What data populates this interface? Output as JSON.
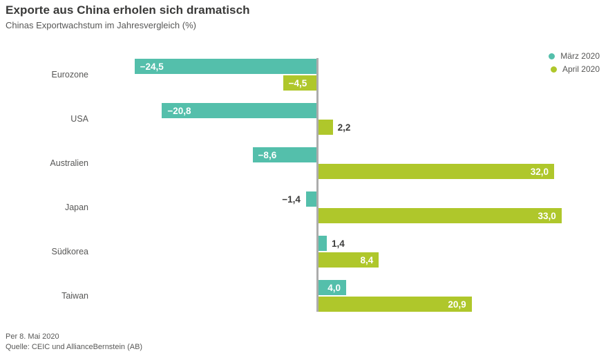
{
  "header": {
    "title": "Exporte aus China erholen sich dramatisch",
    "subtitle": "Chinas Exportwachstum im Jahresvergleich (%)"
  },
  "legend": {
    "position": "top-right",
    "items": [
      {
        "label": "März 2020",
        "color": "#54BFAB"
      },
      {
        "label": "April 2020",
        "color": "#AFC72B"
      }
    ]
  },
  "chart_data": {
    "type": "bar",
    "orientation": "horizontal",
    "title": "Exporte aus China erholen sich dramatisch",
    "subtitle": "Chinas Exportwachstum im Jahresvergleich (%)",
    "value_unit": "%",
    "categories": [
      "Eurozone",
      "USA",
      "Australien",
      "Japan",
      "Südkorea",
      "Taiwan"
    ],
    "series": [
      {
        "name": "März 2020",
        "color": "#54BFAB",
        "values": [
          -24.5,
          -20.8,
          -8.6,
          -1.4,
          1.4,
          4.0
        ],
        "labels": [
          "−24,5",
          "−20,8",
          "−8,6",
          "−1,4",
          "1,4",
          "4,0"
        ]
      },
      {
        "name": "April 2020",
        "color": "#AFC72B",
        "values": [
          -4.5,
          2.2,
          32.0,
          33.0,
          8.4,
          20.9
        ],
        "labels": [
          "−4,5",
          "2,2",
          "32,0",
          "33,0",
          "8,4",
          "20,9"
        ]
      }
    ],
    "xlim": [
      -28.6,
      37.8
    ],
    "grid": false,
    "zero_line": true,
    "zero_line_color": "#ACACAC",
    "legend_position": "top-right",
    "label_color_inside": "#FFFFFF",
    "label_color_outside": "#3C3C3B",
    "number_format": "german-decimal-comma"
  },
  "footer": {
    "date": "Per 8. Mai 2020",
    "source": "Quelle: CEIC und AllianceBernstein (AB)"
  }
}
